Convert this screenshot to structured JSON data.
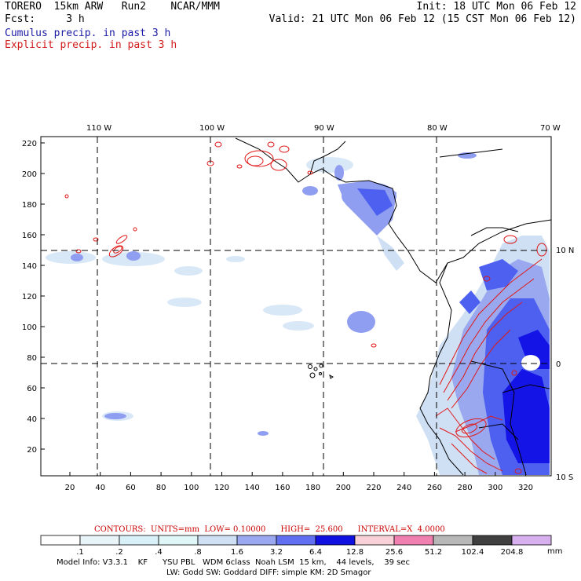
{
  "header": {
    "line1_left": "TORERO  15km ARW   Run2    NCAR/MMM",
    "line1_right": "Init: 18 UTC Mon 06 Feb 12",
    "line2_left": "Fcst:     3 h",
    "line2_right": "Valid: 21 UTC Mon 06 Feb 12 (15 CST Mon 06 Feb 12)",
    "line3": "Cumulus precip. in past 3 h",
    "line4": "Explicit precip. in past 3 h"
  },
  "map": {
    "lon_labels": [
      "110 W",
      "100 W",
      "90 W",
      "80 W",
      "70 W"
    ],
    "lat_labels": [
      "10 N",
      "0",
      "10 S"
    ],
    "y_ticks": [
      "220",
      "200",
      "180",
      "160",
      "140",
      "120",
      "100",
      "80",
      "60",
      "40",
      "20"
    ],
    "x_ticks": [
      "20",
      "40",
      "60",
      "80",
      "100",
      "120",
      "140",
      "160",
      "180",
      "200",
      "220",
      "240",
      "260",
      "280",
      "300",
      "320"
    ],
    "grid_style": "dashed",
    "colors": {
      "cumulus_light": "#cfe0f5",
      "cumulus_mid": "#8f9ef0",
      "cumulus_dark": "#4d60f0",
      "cumulus_heavy": "#1414e6",
      "explicit_contour": "#e01818",
      "coastline": "#000000"
    }
  },
  "contours_caption": "CONTOURS:  UNITS=mm  LOW= 0.10000      HIGH=  25.600      INTERVAL=X  4.0000",
  "colorbar": {
    "labels": [
      ".1",
      ".2",
      ".4",
      ".8",
      "1.6",
      "3.2",
      "6.4",
      "12.8",
      "25.6",
      "51.2",
      "102.4",
      "204.8"
    ],
    "unit": "mm",
    "colors": [
      "#ffffff",
      "#e8f4f8",
      "#d8f0f8",
      "#e0f7f7",
      "#cfe0f5",
      "#9aa8f0",
      "#6070f0",
      "#1010e0",
      "#f7d0d8",
      "#f080b0",
      "#b8b8b8",
      "#404040",
      "#d8b0f0"
    ]
  },
  "footer": {
    "line1": "Model Info: V3.3.1    KF      YSU PBL   WDM 6class  Noah LSM  15 km,    44 levels,    39 sec",
    "line2": "LW: Godd SW: Goddard DIFF: simple KM: 2D Smagor"
  }
}
